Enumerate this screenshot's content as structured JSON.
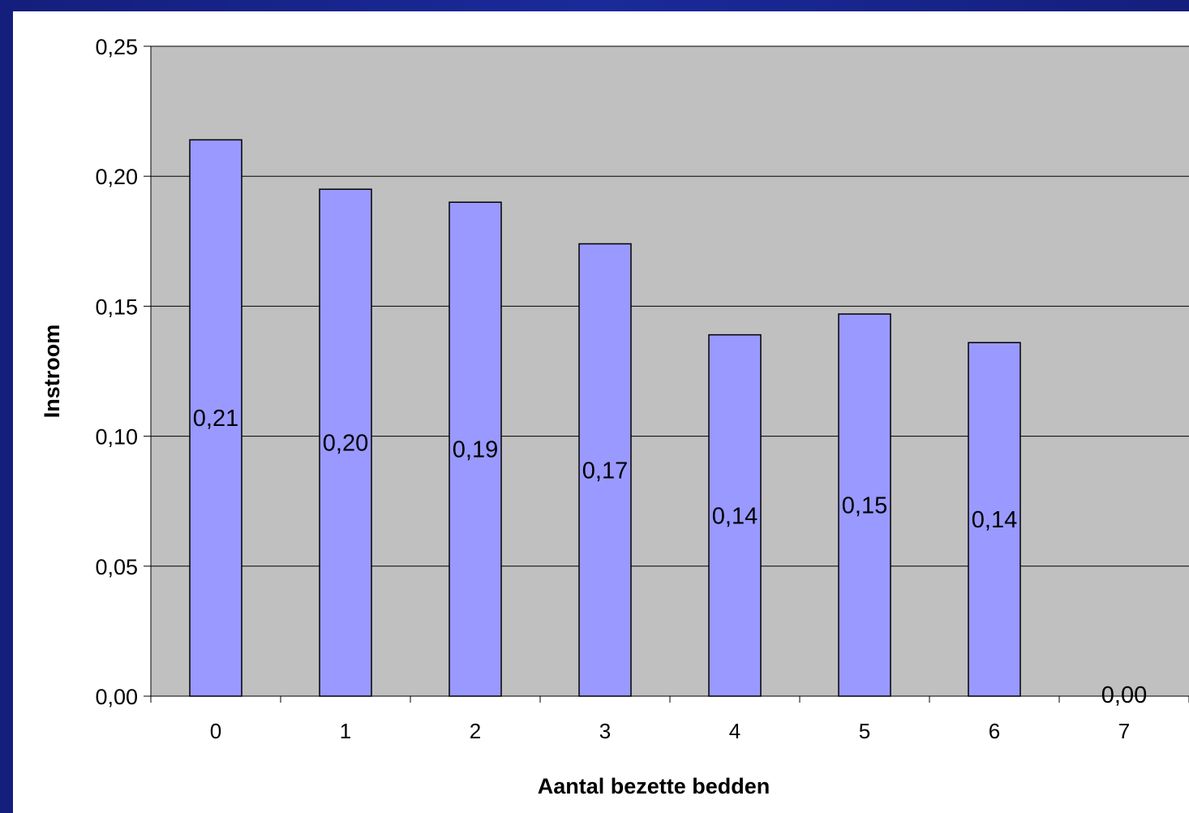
{
  "chart_data": {
    "type": "bar",
    "title": "",
    "xlabel": "Aantal bezette bedden",
    "ylabel": "Instroom",
    "categories": [
      "0",
      "1",
      "2",
      "3",
      "4",
      "5",
      "6",
      "7"
    ],
    "values": [
      0.214,
      0.195,
      0.19,
      0.174,
      0.139,
      0.147,
      0.136,
      0.0
    ],
    "value_labels": [
      "0,21",
      "0,20",
      "0,19",
      "0,17",
      "0,14",
      "0,15",
      "0,14",
      "0,00"
    ],
    "ylim": [
      0,
      0.25
    ],
    "yticks": [
      0,
      0.05,
      0.1,
      0.15,
      0.2,
      0.25
    ],
    "ytick_labels": [
      "0,00",
      "0,05",
      "0,10",
      "0,15",
      "0,20",
      "0,25"
    ],
    "grid": true,
    "legend": "none",
    "colors": {
      "bar_fill": "#9999ff",
      "plot_background": "#c0c0c0",
      "frame_border": "#141e7c",
      "gridline": "#000000"
    }
  }
}
